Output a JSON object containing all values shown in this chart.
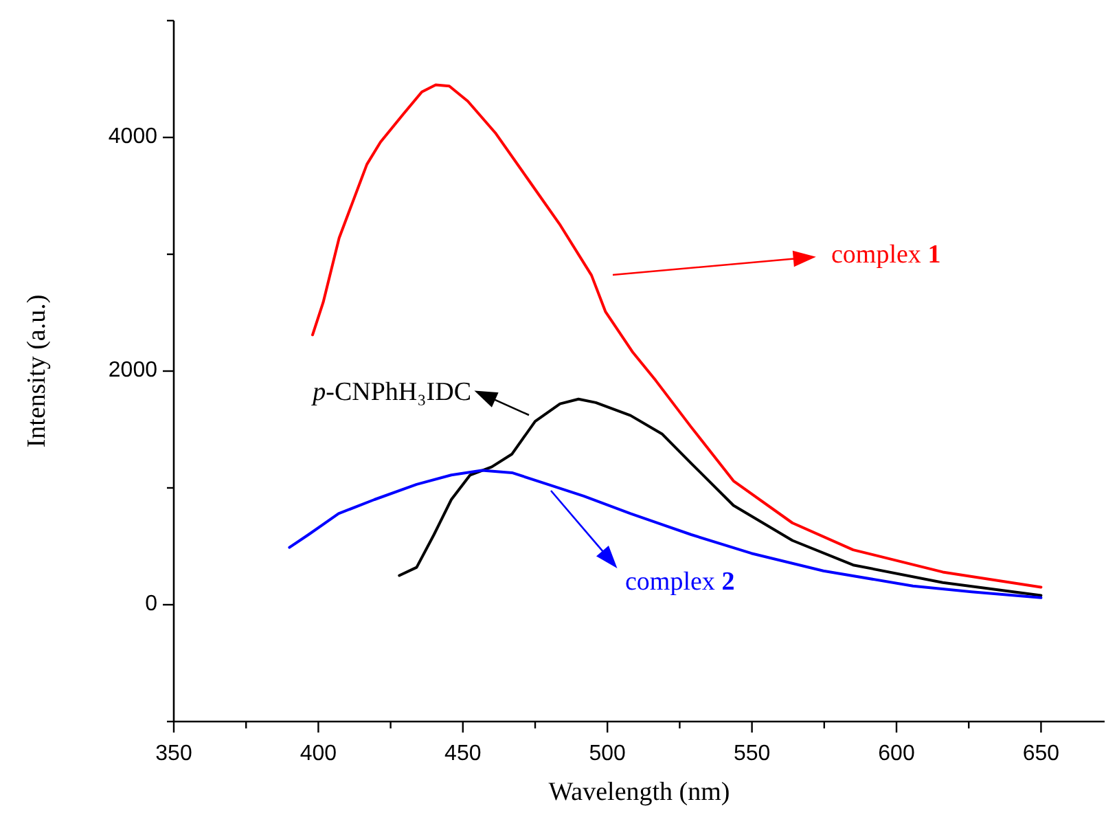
{
  "chart_data": {
    "type": "line",
    "xlabel": "Wavelength (nm)",
    "ylabel": "Intensity (a.u.)",
    "xlim": [
      350,
      672
    ],
    "xticks": [
      350,
      {
        "value": 375,
        "label": null
      },
      400,
      {
        "value": 425,
        "label": null
      },
      450,
      {
        "value": 475,
        "label": null
      },
      500,
      {
        "value": 525,
        "label": null
      },
      550,
      {
        "value": 575,
        "label": null
      },
      600,
      {
        "value": 625,
        "label": null
      },
      650
    ],
    "ylim": [
      -1000,
      5000
    ],
    "yticks": [
      {
        "value": -1000,
        "label": null
      },
      0,
      {
        "value": 1000,
        "label": null
      },
      2000,
      {
        "value": 3000,
        "label": null
      },
      4000,
      {
        "value": 5000,
        "label": null
      }
    ],
    "line_style": "solid",
    "series": [
      {
        "color": "#ff0000",
        "x": [
          398,
          401.7,
          407.2,
          416.8,
          421.5,
          429.4,
          435.8,
          440.6,
          445.3,
          451.7,
          461.2,
          472.3,
          483.4,
          494.5,
          499.3,
          508.8,
          516.7,
          529,
          543.6,
          564,
          585,
          616,
          650
        ],
        "values": [
          2310,
          2590,
          3140,
          3770,
          3960,
          4200,
          4390,
          4450,
          4440,
          4310,
          4040,
          3650,
          3260,
          2820,
          2510,
          2160,
          1920,
          1520,
          1060,
          700,
          470,
          280,
          150
        ]
      },
      {
        "color": "#000000",
        "x": [
          428,
          434,
          440,
          446,
          452.5,
          460,
          467,
          475,
          483.6,
          490,
          496,
          508,
          519,
          529,
          543.6,
          564,
          585,
          616,
          650
        ],
        "values": [
          250,
          320,
          600,
          900,
          1110,
          1180,
          1290,
          1570,
          1720,
          1760,
          1730,
          1620,
          1460,
          1210,
          850,
          550,
          340,
          190,
          80
        ]
      },
      {
        "color": "#0000ff",
        "x": [
          390,
          396.6,
          407,
          419.4,
          434,
          446,
          456.6,
          467,
          479.4,
          491.8,
          508,
          529,
          549.8,
          574.7,
          605.7,
          626,
          650
        ],
        "values": [
          490,
          600,
          780,
          900,
          1030,
          1110,
          1150,
          1130,
          1030,
          930,
          780,
          600,
          440,
          290,
          160,
          110,
          60
        ]
      }
    ],
    "annotations": [
      "complex 1",
      "p-CNPhH₃IDC",
      "complex 2"
    ]
  }
}
